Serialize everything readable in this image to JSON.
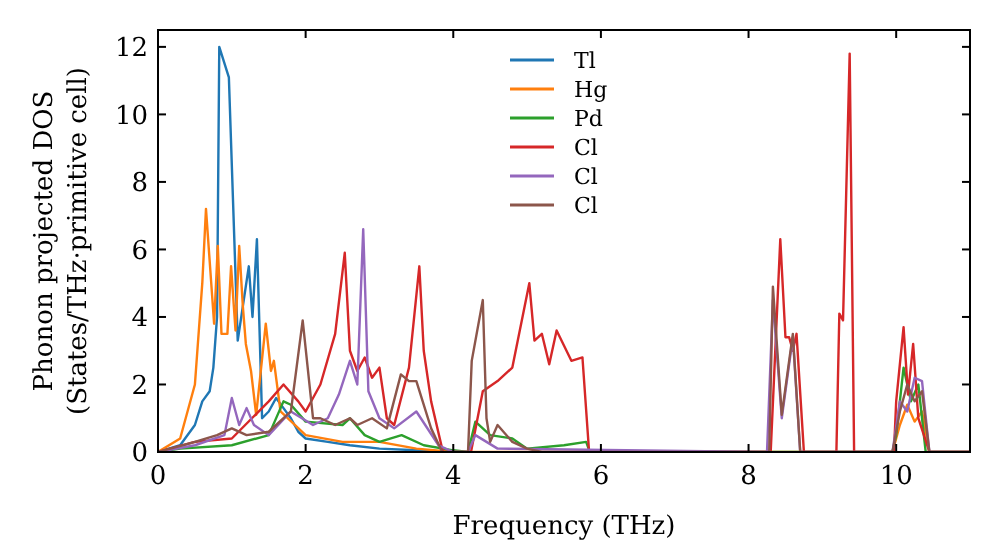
{
  "chart_data": {
    "type": "line",
    "xlabel": "Frequency (THz)",
    "ylabel": "Phonon projected DOS\n(States/THz·primitive cell)",
    "xlim": [
      0,
      11
    ],
    "ylim": [
      0,
      12.5
    ],
    "xticks": [
      0,
      2,
      4,
      6,
      8,
      10
    ],
    "yticks": [
      0,
      2,
      4,
      6,
      8,
      10,
      12
    ],
    "grid": false,
    "legend": "top",
    "line_style": "solid",
    "marker": "none",
    "series": [
      {
        "name": "Tl",
        "color": "#1f77b4",
        "x": [
          0,
          0.3,
          0.5,
          0.6,
          0.7,
          0.75,
          0.8,
          0.83,
          0.96,
          1.08,
          1.23,
          1.28,
          1.34,
          1.41,
          1.5,
          1.6,
          1.7,
          1.8,
          1.9,
          2.0,
          2.3,
          2.6,
          3.0,
          3.5,
          4.0
        ],
        "values": [
          0,
          0.2,
          0.8,
          1.5,
          1.8,
          2.5,
          4,
          12,
          11.1,
          3.3,
          5.5,
          4,
          6.3,
          1,
          1.2,
          1.6,
          1.3,
          1,
          0.6,
          0.4,
          0.3,
          0.2,
          0.1,
          0.05,
          0
        ]
      },
      {
        "name": "Hg",
        "color": "#ff7f0e",
        "x": [
          0,
          0.3,
          0.5,
          0.6,
          0.65,
          0.76,
          0.81,
          0.86,
          0.94,
          0.99,
          1.05,
          1.1,
          1.15,
          1.19,
          1.26,
          1.33,
          1.46,
          1.53,
          1.57,
          1.66,
          2.0,
          2.5,
          3.0,
          3.5,
          4.0,
          9.95,
          10.05,
          10.15,
          10.25,
          10.35,
          10.45,
          11.0
        ],
        "values": [
          0,
          0.4,
          2,
          5,
          7.2,
          3.8,
          6.1,
          3.5,
          3.5,
          5.5,
          3.6,
          6.1,
          4.3,
          3.2,
          2.4,
          1.1,
          3.8,
          2.4,
          2.7,
          1.2,
          0.5,
          0.3,
          0.3,
          0.1,
          0,
          0,
          0.8,
          1.4,
          0.9,
          1.2,
          0,
          0
        ]
      },
      {
        "name": "Pd",
        "color": "#2ca02c",
        "x": [
          0,
          0.3,
          1.0,
          1.5,
          1.7,
          1.8,
          2.0,
          2.5,
          2.6,
          2.8,
          3.0,
          3.3,
          3.6,
          4.0,
          4.2,
          4.3,
          4.5,
          4.8,
          5.0,
          5.5,
          5.8,
          5.85,
          9.95,
          10.0,
          10.1,
          10.2,
          10.3,
          10.4,
          11.0
        ],
        "values": [
          0,
          0.1,
          0.2,
          0.5,
          1.5,
          1.4,
          0.9,
          0.8,
          1.0,
          0.5,
          0.3,
          0.5,
          0.2,
          0.05,
          0,
          0.9,
          0.5,
          0.4,
          0.1,
          0.2,
          0.3,
          0,
          0,
          0.5,
          2.5,
          1.5,
          2,
          0,
          0
        ]
      },
      {
        "name": "Cl",
        "color": "#d62728",
        "x": [
          0,
          0.5,
          1.0,
          1.5,
          1.7,
          1.9,
          2.0,
          2.2,
          2.4,
          2.53,
          2.6,
          2.7,
          2.8,
          2.9,
          3.0,
          3.1,
          3.2,
          3.4,
          3.54,
          3.6,
          3.7,
          3.86,
          4.24,
          4.4,
          4.6,
          4.8,
          5.03,
          5.1,
          5.2,
          5.3,
          5.4,
          5.6,
          5.75,
          5.84,
          8.3,
          8.43,
          8.5,
          8.55,
          8.6,
          8.65,
          8.75,
          9.19,
          9.23,
          9.28,
          9.37,
          9.43,
          9.97,
          10.0,
          10.1,
          10.16,
          10.23,
          10.3,
          10.45,
          11.0
        ],
        "values": [
          0,
          0.3,
          0.4,
          1.5,
          2,
          1.5,
          1.2,
          2,
          3.5,
          5.9,
          3,
          2.4,
          2.8,
          2.2,
          2.5,
          1,
          0.8,
          2.5,
          5.5,
          3,
          1.5,
          0,
          0,
          1.8,
          2.1,
          2.5,
          5,
          3.3,
          3.5,
          2.6,
          3.6,
          2.7,
          2.8,
          0,
          0,
          6.3,
          3.4,
          3.4,
          3,
          3.5,
          0,
          0,
          4.1,
          3.9,
          11.8,
          0,
          0,
          1.5,
          3.7,
          1.7,
          3.2,
          1,
          0,
          0
        ]
      },
      {
        "name": "Cl",
        "color": "#9467bd",
        "x": [
          0,
          0.5,
          0.9,
          1.0,
          1.1,
          1.2,
          1.3,
          1.5,
          1.8,
          2.1,
          2.3,
          2.45,
          2.6,
          2.7,
          2.78,
          2.85,
          3.0,
          3.2,
          3.5,
          3.8,
          4.0,
          4.2,
          4.3,
          4.6,
          8.25,
          8.33,
          8.45,
          8.6,
          8.7,
          9.95,
          10.05,
          10.15,
          10.25,
          10.35,
          10.45,
          11.0
        ],
        "values": [
          0,
          0.2,
          0.5,
          1.6,
          0.8,
          1.3,
          0.8,
          0.5,
          1.2,
          0.8,
          1.0,
          1.7,
          2.7,
          2.0,
          6.6,
          1.8,
          1.0,
          0.7,
          1.2,
          0.2,
          0,
          0,
          0.5,
          0.1,
          0,
          4.5,
          1,
          3.4,
          0,
          0,
          1.5,
          1.2,
          2.2,
          2.1,
          0,
          0
        ]
      },
      {
        "name": "Cl",
        "color": "#8c564b",
        "x": [
          0,
          0.5,
          0.8,
          1.0,
          1.2,
          1.5,
          1.8,
          1.96,
          2.1,
          2.2,
          2.4,
          2.6,
          2.7,
          2.9,
          3.1,
          3.29,
          3.4,
          3.5,
          3.7,
          3.85,
          4.2,
          4.25,
          4.4,
          4.45,
          4.5,
          4.6,
          4.8,
          5.0,
          5.2,
          8.28,
          8.33,
          8.45,
          8.6,
          8.7,
          9.95,
          10.05,
          10.15,
          10.25,
          10.35,
          10.45,
          11.0
        ],
        "values": [
          0,
          0.3,
          0.5,
          0.7,
          0.5,
          0.6,
          1.2,
          3.9,
          1,
          1,
          0.8,
          1,
          0.8,
          1.0,
          0.7,
          2.3,
          2.1,
          2.1,
          0.7,
          0,
          0,
          2.7,
          4.5,
          1,
          0.3,
          0.8,
          0.3,
          0.1,
          0,
          0,
          4.9,
          1.1,
          3.5,
          0,
          0,
          1.2,
          2.0,
          1.5,
          1.8,
          0,
          0
        ]
      }
    ]
  }
}
